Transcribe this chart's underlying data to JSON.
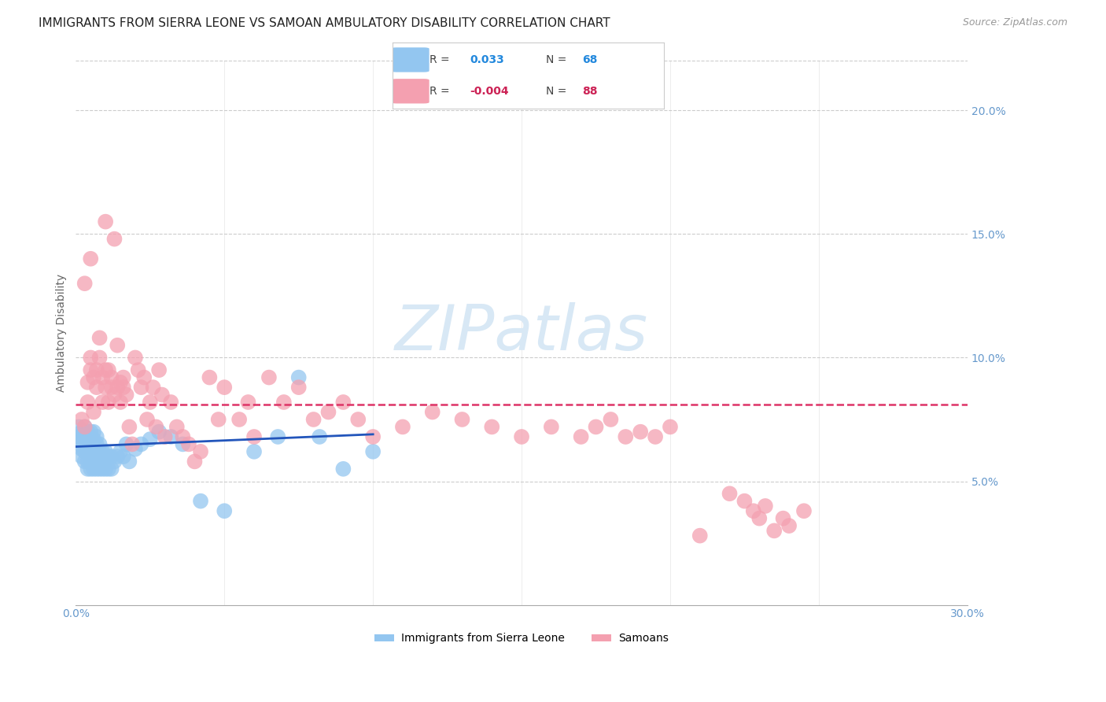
{
  "title": "IMMIGRANTS FROM SIERRA LEONE VS SAMOAN AMBULATORY DISABILITY CORRELATION CHART",
  "source": "Source: ZipAtlas.com",
  "xlabel": "Immigrants from Sierra Leone",
  "ylabel": "Ambulatory Disability",
  "xlim": [
    0.0,
    0.3
  ],
  "ylim": [
    0.0,
    0.22
  ],
  "legend_blue_R": "0.033",
  "legend_blue_N": "68",
  "legend_pink_R": "-0.004",
  "legend_pink_N": "88",
  "blue_color": "#93c6f0",
  "pink_color": "#f4a0b0",
  "blue_line_color": "#2255bb",
  "pink_line_color": "#dd3366",
  "blue_scatter_x": [
    0.001,
    0.001,
    0.001,
    0.002,
    0.002,
    0.002,
    0.002,
    0.003,
    0.003,
    0.003,
    0.003,
    0.003,
    0.004,
    0.004,
    0.004,
    0.004,
    0.004,
    0.005,
    0.005,
    0.005,
    0.005,
    0.005,
    0.005,
    0.006,
    0.006,
    0.006,
    0.006,
    0.006,
    0.006,
    0.007,
    0.007,
    0.007,
    0.007,
    0.007,
    0.008,
    0.008,
    0.008,
    0.008,
    0.009,
    0.009,
    0.009,
    0.01,
    0.01,
    0.01,
    0.011,
    0.011,
    0.012,
    0.012,
    0.013,
    0.014,
    0.015,
    0.016,
    0.017,
    0.018,
    0.02,
    0.022,
    0.025,
    0.028,
    0.032,
    0.036,
    0.042,
    0.05,
    0.06,
    0.068,
    0.075,
    0.082,
    0.09,
    0.1
  ],
  "blue_scatter_y": [
    0.065,
    0.068,
    0.072,
    0.06,
    0.063,
    0.067,
    0.07,
    0.058,
    0.062,
    0.065,
    0.069,
    0.072,
    0.055,
    0.058,
    0.062,
    0.066,
    0.07,
    0.055,
    0.058,
    0.061,
    0.064,
    0.067,
    0.07,
    0.055,
    0.058,
    0.061,
    0.064,
    0.067,
    0.07,
    0.055,
    0.058,
    0.062,
    0.065,
    0.068,
    0.055,
    0.058,
    0.062,
    0.065,
    0.055,
    0.058,
    0.062,
    0.055,
    0.058,
    0.062,
    0.055,
    0.06,
    0.055,
    0.06,
    0.058,
    0.06,
    0.062,
    0.06,
    0.065,
    0.058,
    0.063,
    0.065,
    0.067,
    0.07,
    0.068,
    0.065,
    0.042,
    0.038,
    0.062,
    0.068,
    0.092,
    0.068,
    0.055,
    0.062
  ],
  "pink_scatter_x": [
    0.002,
    0.003,
    0.003,
    0.004,
    0.004,
    0.005,
    0.005,
    0.005,
    0.006,
    0.006,
    0.007,
    0.007,
    0.008,
    0.008,
    0.009,
    0.009,
    0.01,
    0.01,
    0.01,
    0.011,
    0.011,
    0.012,
    0.012,
    0.013,
    0.013,
    0.014,
    0.014,
    0.015,
    0.015,
    0.016,
    0.016,
    0.017,
    0.018,
    0.019,
    0.02,
    0.021,
    0.022,
    0.023,
    0.024,
    0.025,
    0.026,
    0.027,
    0.028,
    0.029,
    0.03,
    0.032,
    0.034,
    0.036,
    0.038,
    0.04,
    0.042,
    0.045,
    0.048,
    0.05,
    0.055,
    0.058,
    0.06,
    0.065,
    0.07,
    0.075,
    0.08,
    0.085,
    0.09,
    0.095,
    0.1,
    0.11,
    0.12,
    0.13,
    0.14,
    0.15,
    0.16,
    0.17,
    0.175,
    0.18,
    0.185,
    0.19,
    0.195,
    0.2,
    0.21,
    0.22,
    0.225,
    0.228,
    0.23,
    0.232,
    0.235,
    0.238,
    0.24,
    0.245
  ],
  "pink_scatter_y": [
    0.075,
    0.072,
    0.13,
    0.082,
    0.09,
    0.1,
    0.095,
    0.14,
    0.092,
    0.078,
    0.088,
    0.095,
    0.1,
    0.108,
    0.092,
    0.082,
    0.095,
    0.088,
    0.155,
    0.095,
    0.082,
    0.088,
    0.092,
    0.085,
    0.148,
    0.088,
    0.105,
    0.082,
    0.09,
    0.088,
    0.092,
    0.085,
    0.072,
    0.065,
    0.1,
    0.095,
    0.088,
    0.092,
    0.075,
    0.082,
    0.088,
    0.072,
    0.095,
    0.085,
    0.068,
    0.082,
    0.072,
    0.068,
    0.065,
    0.058,
    0.062,
    0.092,
    0.075,
    0.088,
    0.075,
    0.082,
    0.068,
    0.092,
    0.082,
    0.088,
    0.075,
    0.078,
    0.082,
    0.075,
    0.068,
    0.072,
    0.078,
    0.075,
    0.072,
    0.068,
    0.072,
    0.068,
    0.072,
    0.075,
    0.068,
    0.07,
    0.068,
    0.072,
    0.028,
    0.045,
    0.042,
    0.038,
    0.035,
    0.04,
    0.03,
    0.035,
    0.032,
    0.038
  ],
  "watermark_text": "ZIPatlas",
  "background_color": "#ffffff",
  "grid_color": "#cccccc",
  "title_fontsize": 11,
  "axis_label_fontsize": 10,
  "tick_fontsize": 10,
  "tick_color": "#6699cc"
}
